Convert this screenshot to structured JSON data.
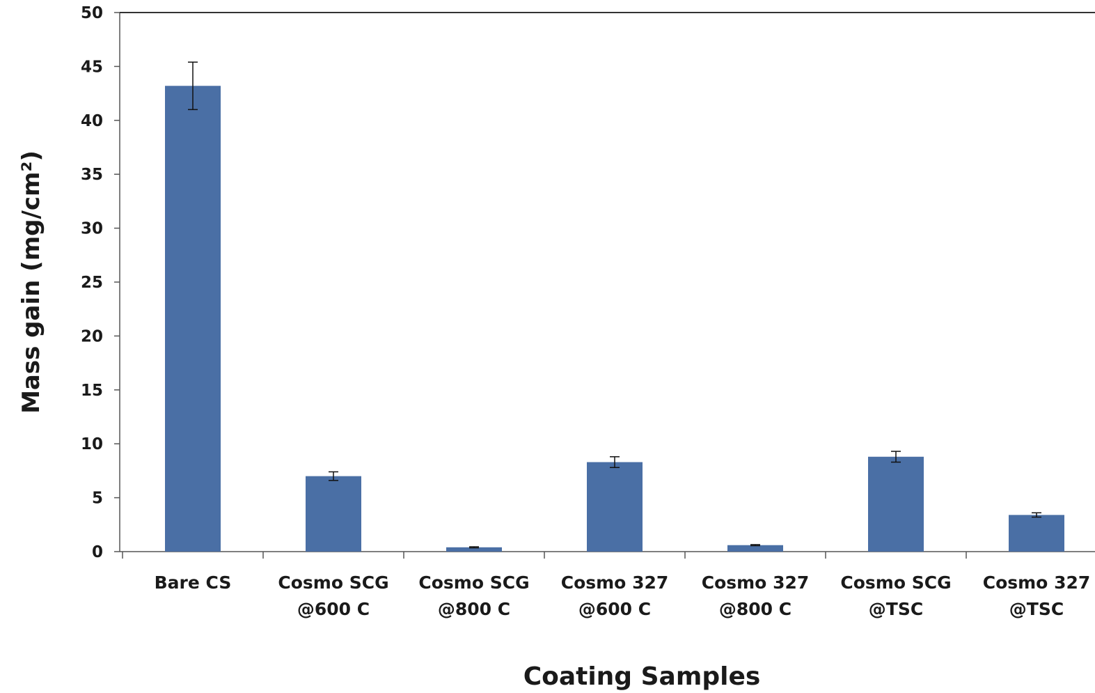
{
  "chart_data": {
    "type": "bar",
    "categories": [
      [
        "Bare CS"
      ],
      [
        "Cosmo SCG",
        "@600 C"
      ],
      [
        "Cosmo SCG",
        "@800 C"
      ],
      [
        "Cosmo 327",
        "@600 C"
      ],
      [
        "Cosmo 327",
        "@800 C"
      ],
      [
        "Cosmo SCG",
        "@TSC"
      ],
      [
        "Cosmo 327",
        "@TSC"
      ]
    ],
    "values": [
      43.2,
      7.0,
      0.4,
      8.3,
      0.6,
      8.8,
      3.4
    ],
    "error": [
      2.2,
      0.4,
      0.05,
      0.5,
      0.05,
      0.5,
      0.2
    ],
    "xlabel": "Coating Samples",
    "ylabel": "Mass gain (mg/cm²)",
    "ylim": [
      0,
      50
    ],
    "yticks": [
      "0",
      "5",
      "10",
      "15",
      "20",
      "25",
      "30",
      "35",
      "40",
      "45",
      "50"
    ],
    "grid": false,
    "legend": "none",
    "bar_color": "#4a6fa5"
  }
}
